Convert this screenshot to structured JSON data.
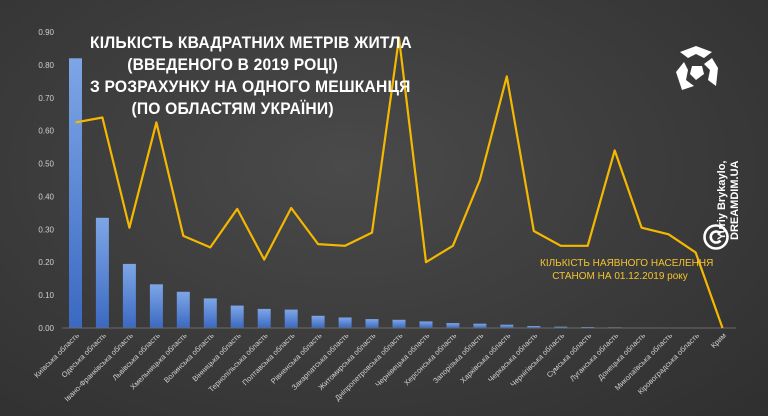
{
  "title_lines": [
    "КІЛЬКІСТЬ КВАДРАТНИХ МЕТРІВ ЖИТЛА",
    "(ВВЕДЕНОГО В 2019 РОЦІ)",
    "З РОЗРАХУНКУ НА ОДНОГО МЕШКАНЦЯ",
    "(ПО ОБЛАСТЯМ УКРАЇНИ)"
  ],
  "line_label_lines": [
    "КІЛЬКІСТЬ НАЯВНОГО НАСЕЛЕННЯ",
    "СТАНОМ НА 01.12.2019 року"
  ],
  "brand": {
    "author": "Yuriy Brykaylo,",
    "site": "DREAMDIM.UA"
  },
  "icons": {
    "logo": "dreamdim-logo-icon",
    "copyright": "copyright-icon"
  },
  "colors": {
    "bar_top": "#7ea6e6",
    "bar_bottom": "#3b69c2",
    "line": "#f4b800",
    "title": "#ffffff",
    "subtitle": "#f4c430",
    "axis_text": "#d0d0d0"
  },
  "chart_data": {
    "type": "bar",
    "categories": [
      "Київська область",
      "Одеська область",
      "Івано-Франківська область",
      "Львівська область",
      "Хмельницька область",
      "Волинська область",
      "Вінницька область",
      "Тернопільська область",
      "Полтавська область",
      "Рівненська область",
      "Закарпатська область",
      "Житомирська область",
      "Дніпропетровська область",
      "Чернівецька область",
      "Херсонська область",
      "Запорізька область",
      "Харківська область",
      "Черкаська область",
      "Чернігівська область",
      "Сумська область",
      "Луганська область",
      "Донецька область",
      "Миколаївська область",
      "Кіровоградська область",
      "Крим"
    ],
    "series": [
      {
        "type": "bar",
        "values": [
          0.82,
          0.335,
          0.195,
          0.133,
          0.11,
          0.09,
          0.068,
          0.058,
          0.056,
          0.037,
          0.032,
          0.027,
          0.025,
          0.02,
          0.015,
          0.013,
          0.01,
          0.006,
          0.004,
          0.003,
          0.002,
          0.0015,
          0.001,
          0.0005,
          0.0
        ]
      },
      {
        "name": "КІЛЬКІСТЬ НАЯВНОГО НАСЕЛЕННЯ СТАНОМ НА 01.12.2019 року",
        "type": "line",
        "values": [
          0.625,
          0.64,
          0.305,
          0.625,
          0.28,
          0.245,
          0.362,
          0.208,
          0.365,
          0.255,
          0.25,
          0.29,
          0.882,
          0.2,
          0.25,
          0.45,
          0.765,
          0.295,
          0.25,
          0.25,
          0.54,
          0.305,
          0.285,
          0.23,
          0.0
        ]
      }
    ],
    "ylim": [
      0,
      0.9
    ],
    "yticks": [
      "0.00",
      "0.10",
      "0.20",
      "0.30",
      "0.40",
      "0.50",
      "0.60",
      "0.70",
      "0.80",
      "0.90"
    ],
    "grid": false,
    "legend": "none"
  }
}
